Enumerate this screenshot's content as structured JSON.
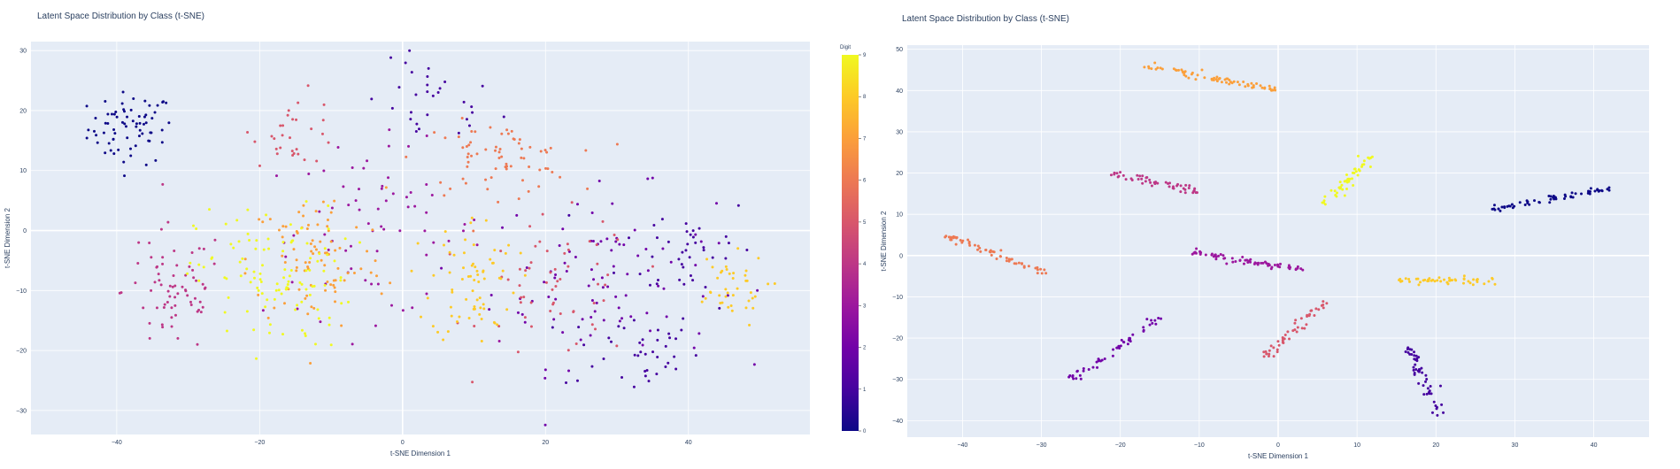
{
  "chart_data": [
    {
      "type": "scatter",
      "title": "Latent Space Distribution by Class (t-SNE)",
      "xlabel": "t-SNE Dimension 1",
      "ylabel": "t-SNE Dimension 2",
      "xlim": [
        -52,
        57
      ],
      "ylim": [
        -34,
        31.5
      ],
      "xticks": [
        -40,
        -20,
        0,
        20,
        40
      ],
      "yticks": [
        -30,
        -20,
        -10,
        0,
        10,
        20,
        30
      ],
      "grid": true,
      "colorbar": {
        "title": "Digit",
        "range": [
          0,
          9
        ],
        "ticks": [
          0,
          1,
          2,
          3,
          4,
          5,
          6,
          7,
          8,
          9
        ]
      },
      "clusters": [
        {
          "label": 0,
          "n": 70,
          "cx": -38,
          "cy": 17,
          "sx": 5,
          "sy": 5
        },
        {
          "label": 1,
          "n": 30,
          "cx": 4,
          "cy": 21,
          "sx": 8,
          "sy": 6
        },
        {
          "label": 1,
          "n": 40,
          "cx": 32,
          "cy": -20,
          "sx": 8,
          "sy": 6
        },
        {
          "label": 1,
          "n": 40,
          "cx": 40,
          "cy": -3,
          "sx": 8,
          "sy": 8
        },
        {
          "label": 2,
          "n": 90,
          "cx": 28,
          "cy": -8,
          "sx": 13,
          "sy": 12
        },
        {
          "label": 3,
          "n": 70,
          "cx": -4,
          "cy": 0,
          "sx": 13,
          "sy": 12
        },
        {
          "label": 4,
          "n": 70,
          "cx": -32,
          "cy": -10,
          "sx": 6,
          "sy": 9
        },
        {
          "label": 5,
          "n": 60,
          "cx": 22,
          "cy": -10,
          "sx": 9,
          "sy": 10
        },
        {
          "label": 5,
          "n": 30,
          "cx": -15,
          "cy": 17,
          "sx": 5,
          "sy": 5
        },
        {
          "label": 6,
          "n": 70,
          "cx": 13,
          "cy": 12,
          "sx": 9,
          "sy": 5
        },
        {
          "label": 7,
          "n": 90,
          "cx": -12,
          "cy": -5,
          "sx": 8,
          "sy": 10
        },
        {
          "label": 8,
          "n": 70,
          "cx": 10,
          "cy": -8,
          "sx": 5,
          "sy": 9
        },
        {
          "label": 8,
          "n": 40,
          "cx": 45,
          "cy": -10,
          "sx": 5,
          "sy": 5
        },
        {
          "label": 9,
          "n": 110,
          "cx": -18,
          "cy": -8,
          "sx": 9,
          "sy": 10
        }
      ]
    },
    {
      "type": "scatter",
      "title": "Latent Space Distribution by Class (t-SNE)",
      "xlabel": "t-SNE Dimension 1",
      "ylabel": "t-SNE Dimension 2",
      "xlim": [
        -47,
        47
      ],
      "ylim": [
        -44,
        51
      ],
      "xticks": [
        -40,
        -30,
        -20,
        -10,
        0,
        10,
        20,
        30,
        40
      ],
      "yticks": [
        -40,
        -30,
        -20,
        -10,
        0,
        10,
        20,
        30,
        40,
        50
      ],
      "grid": true,
      "clusters": [
        {
          "label": 0,
          "n": 60,
          "x0": 27,
          "y0": 11,
          "x1": 42,
          "y1": 16.5
        },
        {
          "label": 1,
          "n": 50,
          "x0": 16,
          "y0": -21,
          "x1": 21,
          "y1": -39
        },
        {
          "label": 2,
          "n": 50,
          "x0": -26,
          "y0": -30,
          "x1": -15,
          "y1": -15
        },
        {
          "label": 3,
          "n": 70,
          "x0": -11,
          "y0": 1,
          "x1": 4,
          "y1": -4
        },
        {
          "label": 4,
          "n": 50,
          "x0": -21,
          "y0": 20,
          "x1": -10,
          "y1": 15.5
        },
        {
          "label": 5,
          "n": 50,
          "x0": -2,
          "y0": -25,
          "x1": 6,
          "y1": -11
        },
        {
          "label": 6,
          "n": 60,
          "x0": -42,
          "y0": 5,
          "x1": -29,
          "y1": -5
        },
        {
          "label": 7,
          "n": 70,
          "x0": -17,
          "y0": 46,
          "x1": 0,
          "y1": 40
        },
        {
          "label": 8,
          "n": 50,
          "x0": 15,
          "y0": -6,
          "x1": 28,
          "y1": -6
        },
        {
          "label": 9,
          "n": 50,
          "x0": 6,
          "y0": 12,
          "x1": 12,
          "y1": 25
        }
      ]
    }
  ]
}
